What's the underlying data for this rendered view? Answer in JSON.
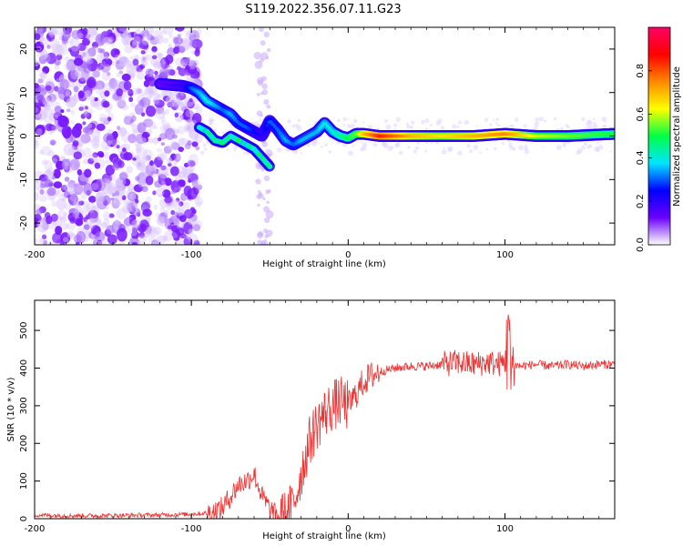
{
  "figure_title": "S119.2022.356.07.11.G23",
  "chart_data": [
    {
      "type": "heatmap",
      "title": "",
      "xlabel": "Height of straight line (km)",
      "ylabel": "Frequency (Hz)",
      "xlim": [
        -200,
        170
      ],
      "ylim": [
        -25,
        25
      ],
      "x_ticks": [
        -200,
        -100,
        0,
        100
      ],
      "y_ticks": [
        -20,
        -10,
        0,
        10,
        20
      ],
      "colorbar": {
        "label": "Normalized spectral amplitude",
        "range": [
          0.0,
          1.0
        ],
        "ticks": [
          "0.0",
          "0.2",
          "0.4",
          "0.6",
          "0.8"
        ],
        "colormap": [
          "#ffffff",
          "#6a00ff",
          "#0000ff",
          "#00e5ff",
          "#00ff44",
          "#ffff00",
          "#ff8800",
          "#ff0000",
          "#ff0066"
        ]
      },
      "noise_region_x": [
        -200,
        -95
      ],
      "signal_track": {
        "x": [
          -120,
          -105,
          -100,
          -95,
          -90,
          -85,
          -80,
          -75,
          -70,
          -65,
          -60,
          -55,
          -50,
          -45,
          -40,
          -35,
          -30,
          -25,
          -20,
          -15,
          -10,
          -5,
          0,
          5,
          10,
          20,
          40,
          60,
          80,
          100,
          120,
          140,
          170
        ],
        "y": [
          12,
          11.5,
          11,
          10,
          8,
          7,
          6,
          5,
          3,
          2,
          1,
          0,
          3.5,
          1.5,
          -1,
          -2,
          -1,
          0,
          1,
          3,
          1,
          0,
          -0.5,
          0.5,
          0.5,
          0,
          0,
          0,
          0,
          0.5,
          0,
          0,
          0.5
        ],
        "amplitude": [
          0.15,
          0.2,
          0.3,
          0.35,
          0.4,
          0.35,
          0.3,
          0.35,
          0.3,
          0.3,
          0.25,
          0.2,
          0.3,
          0.3,
          0.35,
          0.3,
          0.35,
          0.35,
          0.35,
          0.4,
          0.4,
          0.45,
          0.5,
          0.55,
          0.7,
          0.85,
          0.7,
          0.65,
          0.7,
          0.75,
          0.6,
          0.55,
          0.5
        ]
      },
      "lower_branch": {
        "x": [
          -95,
          -90,
          -85,
          -80,
          -75,
          -70,
          -65,
          -60,
          -55,
          -50
        ],
        "y": [
          2,
          1,
          -1,
          -1.5,
          0,
          -1,
          -2,
          -3,
          -5,
          -7
        ]
      }
    },
    {
      "type": "line",
      "title": "",
      "xlabel": "Height of straight line (km)",
      "ylabel": "SNR (10 * v/v)",
      "xlim": [
        -200,
        170
      ],
      "ylim": [
        0,
        580
      ],
      "x_ticks": [
        -200,
        -100,
        0,
        100
      ],
      "y_ticks": [
        0,
        100,
        200,
        300,
        400,
        500
      ],
      "color": "#ee3333",
      "series": [
        {
          "x": [
            -200,
            -180,
            -160,
            -140,
            -120,
            -100,
            -90,
            -85,
            -80,
            -75,
            -70,
            -65,
            -60,
            -55,
            -50,
            -45,
            -40,
            -35,
            -30,
            -25,
            -20,
            -15,
            -10,
            -5,
            0,
            5,
            10,
            15,
            20,
            25,
            30,
            40,
            50,
            60,
            70,
            80,
            90,
            95,
            100,
            102,
            104,
            110,
            120,
            130,
            140,
            150,
            160,
            170
          ],
          "y": [
            10,
            8,
            8,
            9,
            10,
            12,
            15,
            20,
            30,
            60,
            90,
            100,
            120,
            60,
            25,
            5,
            5,
            35,
            120,
            200,
            250,
            280,
            300,
            310,
            300,
            330,
            365,
            380,
            390,
            395,
            400,
            405,
            405,
            410,
            415,
            410,
            415,
            410,
            415,
            520,
            410,
            405,
            410,
            405,
            410,
            405,
            410,
            410
          ]
        }
      ]
    }
  ]
}
